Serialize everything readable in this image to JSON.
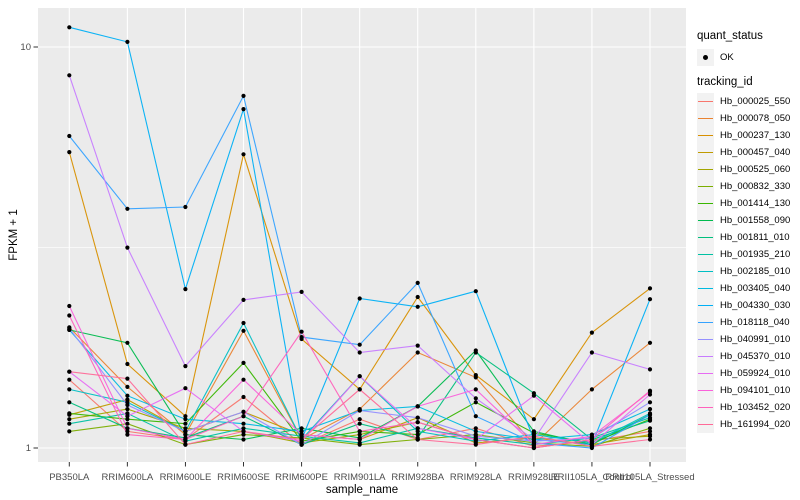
{
  "chart_data": {
    "type": "line",
    "title": "",
    "xlabel": "sample_name",
    "ylabel": "FPKM + 1",
    "y_scale": "log10",
    "ylim": [
      0.92,
      12.6
    ],
    "y_ticks": [
      10,
      1
    ],
    "y_tick_labels": [
      "10",
      "1"
    ],
    "y_minor_ticks": [
      3.162
    ],
    "grid": true,
    "legend_position": "right",
    "x_categories": [
      "PB350LA",
      "RRIM600LA",
      "RRIM600LE",
      "RRIM600SE",
      "RRIM600PE",
      "RRIM901LA",
      "RRIM928BA",
      "RRIM928LA",
      "RRIM928LE",
      "RRII105LA_Control",
      "RRII105LA_Stressed"
    ],
    "series": [
      {
        "name": "Hb_000025_550",
        "color": "#F8766D",
        "values": [
          1.48,
          1.1,
          1.05,
          1.34,
          1.02,
          1.18,
          1.05,
          1.12,
          1.01,
          1.04,
          1.1
        ]
      },
      {
        "name": "Hb_000078_050",
        "color": "#EA8331",
        "values": [
          2.0,
          1.42,
          1.08,
          1.96,
          1.05,
          1.25,
          1.73,
          1.5,
          1.02,
          1.4,
          1.83
        ]
      },
      {
        "name": "Hb_000237_130",
        "color": "#D89000",
        "values": [
          5.47,
          1.62,
          1.2,
          5.4,
          1.87,
          1.4,
          2.38,
          1.52,
          1.18,
          1.94,
          2.5
        ]
      },
      {
        "name": "Hb_000457_040",
        "color": "#C09B00",
        "values": [
          1.21,
          1.32,
          1.1,
          1.23,
          1.08,
          1.05,
          1.19,
          1.03,
          1.06,
          1.02,
          1.08
        ]
      },
      {
        "name": "Hb_000525_060",
        "color": "#A3A500",
        "values": [
          1.18,
          1.25,
          1.12,
          1.1,
          1.03,
          1.08,
          1.16,
          1.05,
          1.0,
          1.05,
          1.07
        ]
      },
      {
        "name": "Hb_000832_330",
        "color": "#7CAE00",
        "values": [
          1.1,
          1.15,
          1.02,
          1.08,
          1.06,
          1.02,
          1.05,
          1.08,
          1.03,
          1.01,
          1.12
        ]
      },
      {
        "name": "Hb_001414_130",
        "color": "#39B600",
        "values": [
          1.22,
          1.18,
          1.15,
          1.63,
          1.04,
          1.1,
          1.08,
          1.3,
          1.09,
          1.03,
          1.18
        ]
      },
      {
        "name": "Hb_001558_090",
        "color": "#00BB4E",
        "values": [
          1.97,
          1.83,
          1.08,
          1.05,
          1.12,
          1.06,
          1.27,
          1.75,
          1.1,
          1.02,
          1.21
        ]
      },
      {
        "name": "Hb_001811_010",
        "color": "#00BF7D",
        "values": [
          1.3,
          1.12,
          1.06,
          1.2,
          1.02,
          1.15,
          1.06,
          1.73,
          1.37,
          1.05,
          1.17
        ]
      },
      {
        "name": "Hb_001935_210",
        "color": "#00C1A3",
        "values": [
          1.15,
          1.22,
          1.04,
          1.12,
          1.07,
          1.03,
          1.12,
          1.06,
          1.02,
          1.06,
          1.19
        ]
      },
      {
        "name": "Hb_002185_010",
        "color": "#00BFC4",
        "values": [
          1.4,
          1.3,
          1.1,
          2.05,
          1.05,
          1.51,
          1.1,
          1.04,
          1.08,
          1.03,
          1.22
        ]
      },
      {
        "name": "Hb_003405_040",
        "color": "#00BAE0",
        "values": [
          1.97,
          1.35,
          1.18,
          1.15,
          1.1,
          1.24,
          1.27,
          1.1,
          1.05,
          1.08,
          1.25
        ]
      },
      {
        "name": "Hb_004330_030",
        "color": "#00B0F6",
        "values": [
          11.2,
          10.3,
          2.49,
          7.0,
          1.05,
          2.36,
          2.25,
          2.46,
          1.05,
          1.02,
          2.35
        ]
      },
      {
        "name": "Hb_018118_040",
        "color": "#35A2FF",
        "values": [
          6.0,
          3.95,
          3.99,
          7.55,
          1.89,
          1.81,
          2.58,
          1.2,
          1.03,
          1.0,
          1.21
        ]
      },
      {
        "name": "Hb_040991_010",
        "color": "#9590FF",
        "values": [
          1.99,
          1.28,
          1.1,
          1.23,
          1.02,
          1.24,
          1.19,
          1.07,
          1.04,
          1.06,
          1.3
        ]
      },
      {
        "name": "Hb_045370_010",
        "color": "#C77CFF",
        "values": [
          8.5,
          3.16,
          1.6,
          2.34,
          2.45,
          1.73,
          1.8,
          1.33,
          1.05,
          1.73,
          1.57
        ]
      },
      {
        "name": "Hb_059924_010",
        "color": "#E76BF3",
        "values": [
          1.55,
          1.2,
          1.41,
          1.1,
          1.04,
          1.51,
          1.12,
          1.05,
          1.35,
          1.02,
          1.36
        ]
      },
      {
        "name": "Hb_094101_010",
        "color": "#FA62DB",
        "values": [
          2.26,
          1.12,
          1.05,
          1.48,
          1.08,
          1.05,
          1.27,
          1.4,
          1.02,
          1.07,
          1.38
        ]
      },
      {
        "name": "Hb_103452_020",
        "color": "#FF62BC",
        "values": [
          2.14,
          1.08,
          1.05,
          1.2,
          1.95,
          1.1,
          1.16,
          1.05,
          1.0,
          1.05,
          1.39
        ]
      },
      {
        "name": "Hb_161994_020",
        "color": "#FF6A98",
        "values": [
          1.55,
          1.49,
          1.02,
          1.1,
          1.05,
          1.4,
          1.05,
          1.02,
          1.07,
          1.01,
          1.05
        ]
      }
    ],
    "point_marker": "filled-black-dot"
  },
  "legend": {
    "quant_status_title": "quant_status",
    "ok_label": "OK",
    "tracking_title": "tracking_id"
  },
  "colors": {
    "panel_bg": "#EBEBEB",
    "grid": "#FFFFFF",
    "tick_text": "#4D4D4D",
    "axis_text": "#000000",
    "key_bg": "#F2F2F2",
    "point": "#000000"
  }
}
